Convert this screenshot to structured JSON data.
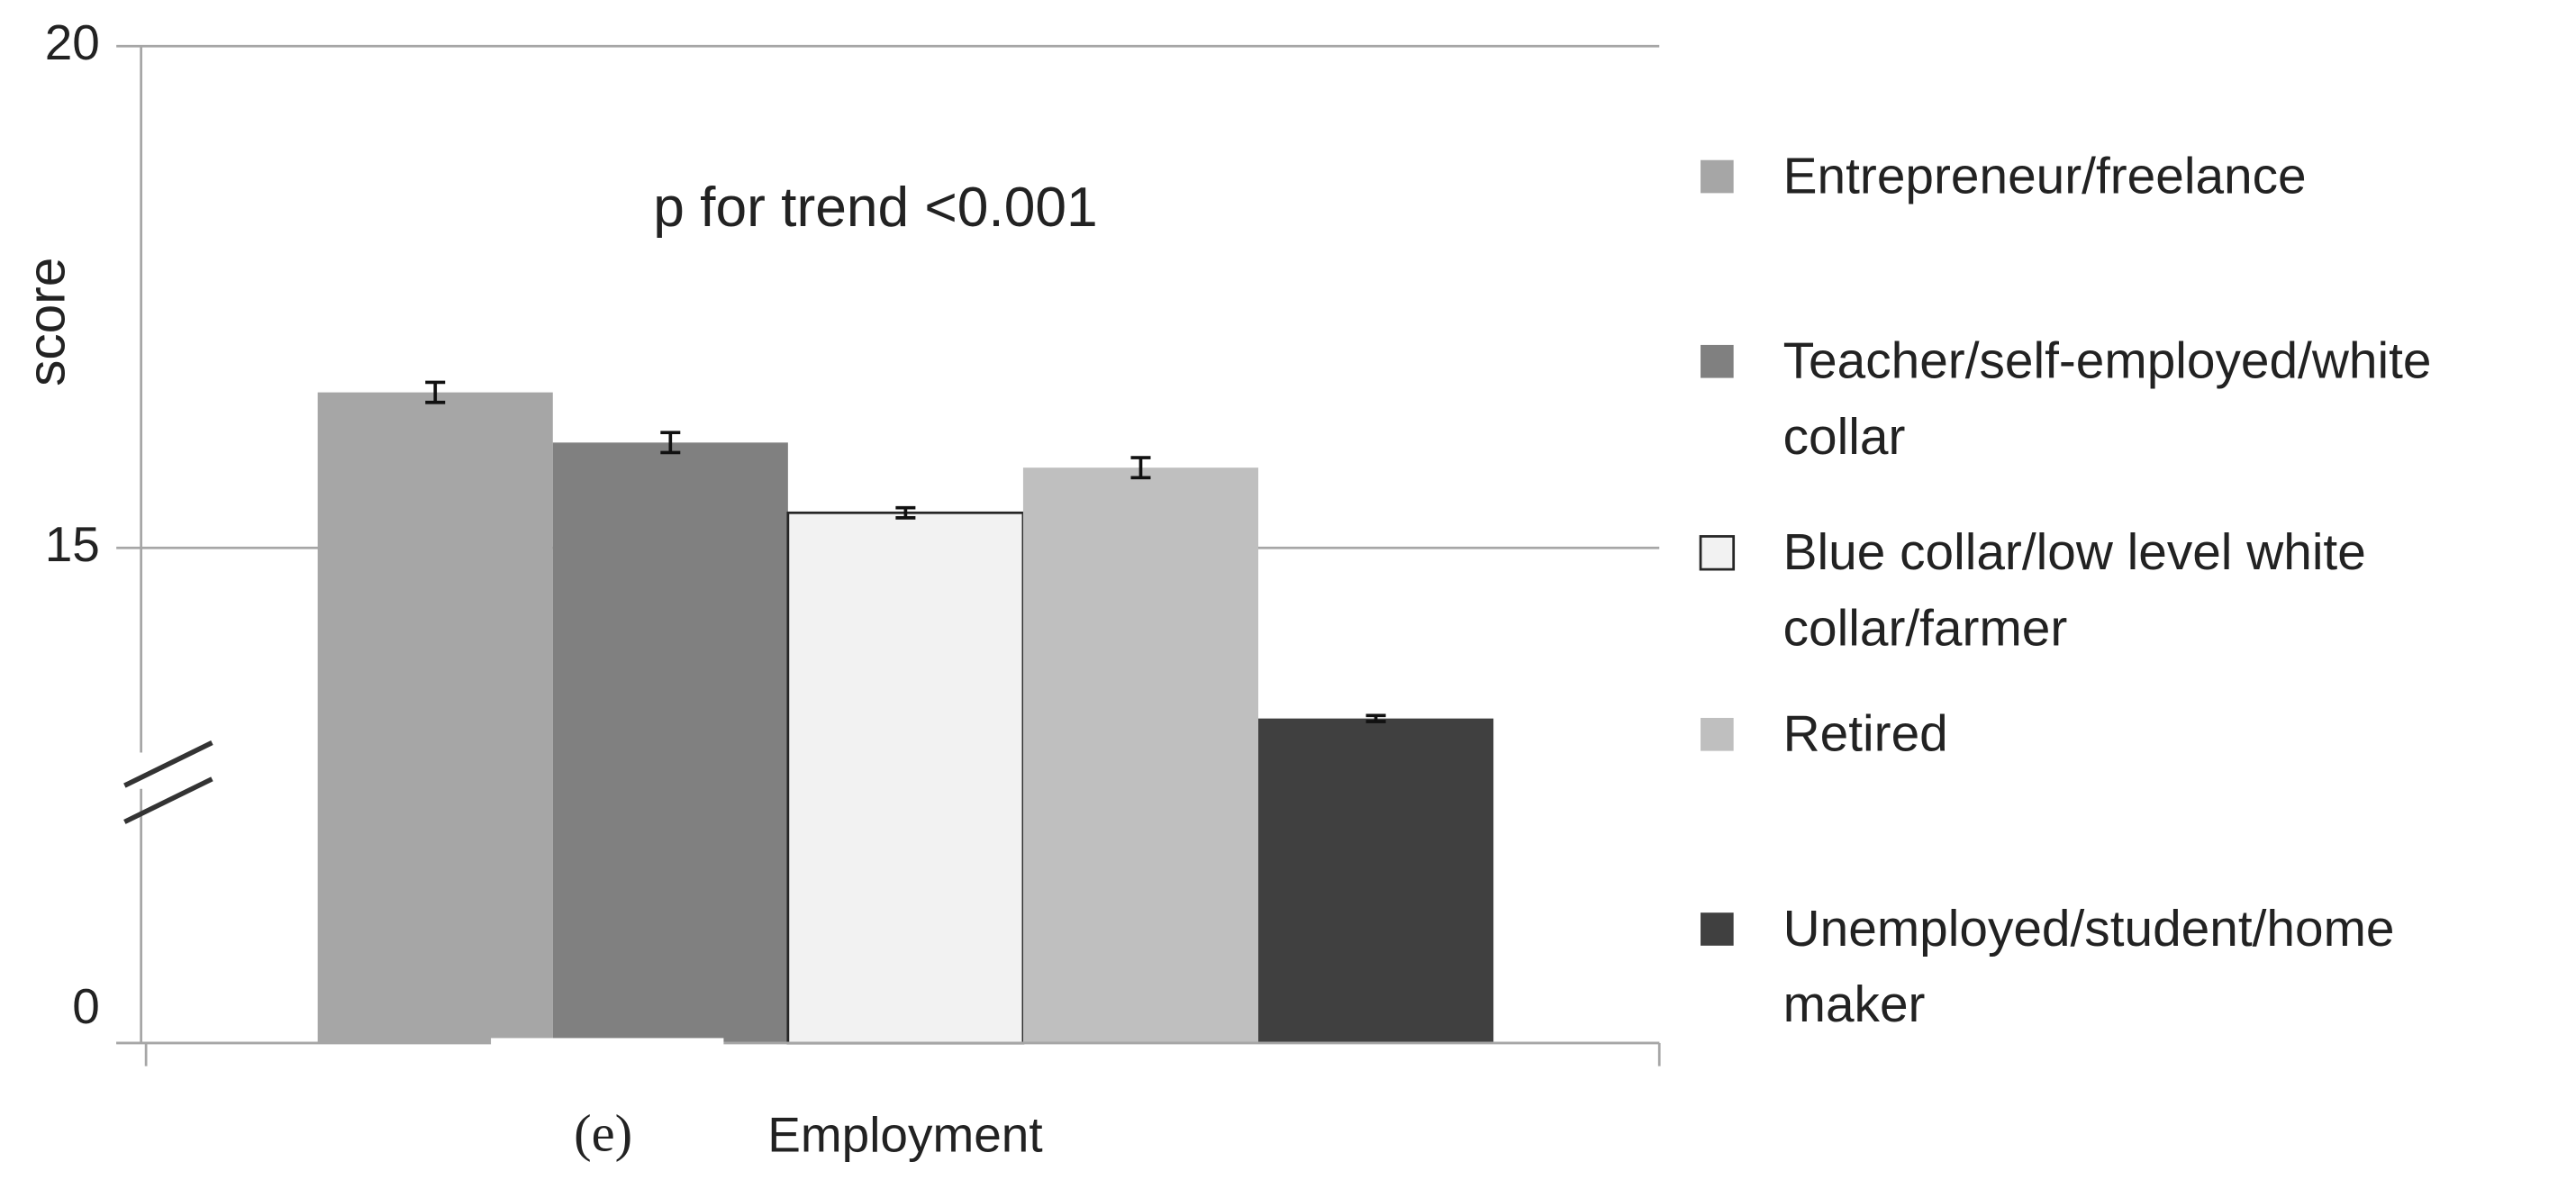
{
  "chart_data": {
    "type": "bar",
    "y_label": "score",
    "x_label": "Employment",
    "panel_label": "(e)",
    "annotation": "p for trend <0.001",
    "ylim": [
      0,
      20
    ],
    "yticks": [
      0,
      15,
      20
    ],
    "grid": true,
    "axis_break": true,
    "legend": "right",
    "series": [
      {
        "name": "Entrepreneur/freelance",
        "color": "#a6a6a6",
        "values": [
          16.55
        ],
        "errors": [
          0.1
        ]
      },
      {
        "name": "Teacher/self-employed/white collar",
        "color": "#808080",
        "values": [
          16.05
        ],
        "errors": [
          0.1
        ]
      },
      {
        "name": "Blue collar/low level white collar/farmer",
        "color": "#f2f2f2",
        "edgecolor": "#262626",
        "values": [
          15.35
        ],
        "errors": [
          0.05
        ]
      },
      {
        "name": "Retired",
        "color": "#bfbfbf",
        "values": [
          15.8
        ],
        "errors": [
          0.1
        ]
      },
      {
        "name": "Unemployed/student/home maker",
        "color": "#404040",
        "values": [
          13.3
        ],
        "errors": [
          0.03
        ]
      }
    ]
  }
}
